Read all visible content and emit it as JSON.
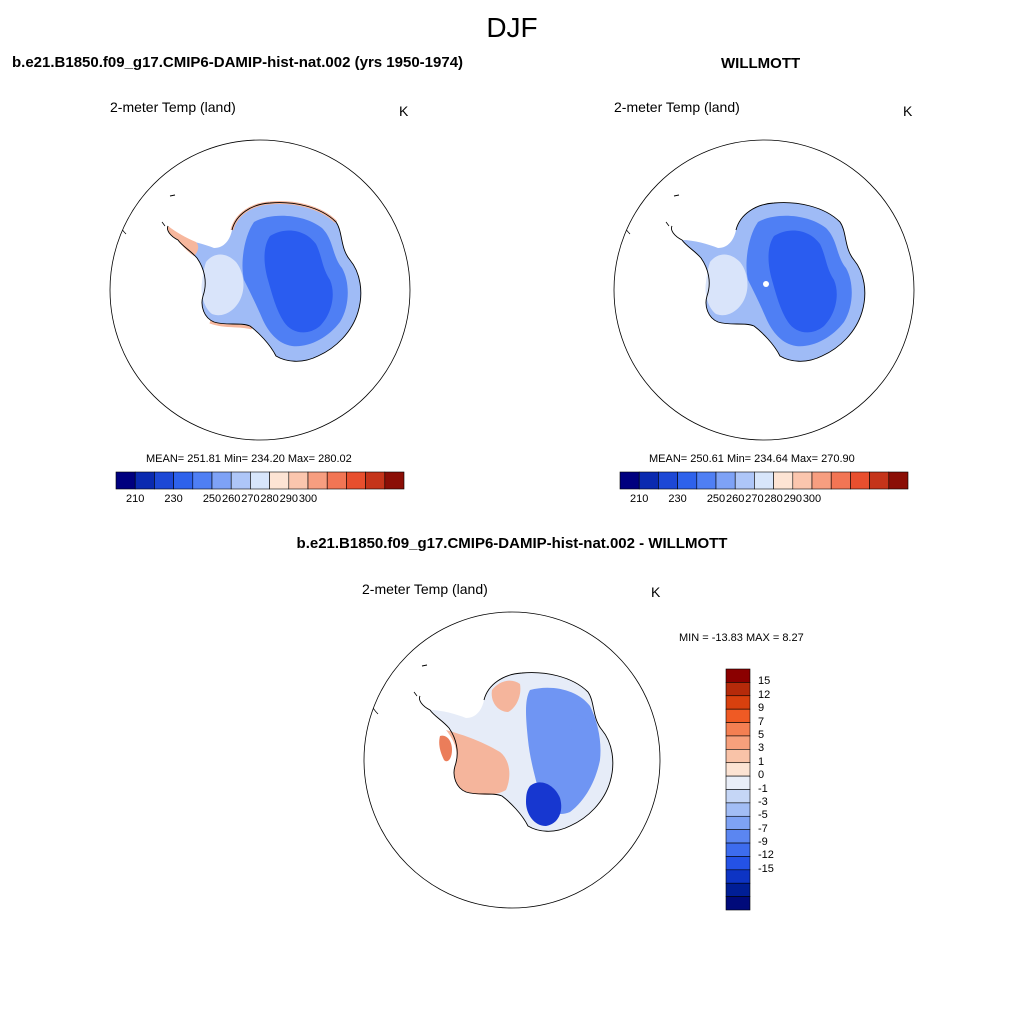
{
  "season": "DJF",
  "panels": {
    "model": {
      "title": "b.e21.B1850.f09_g17.CMIP6-DAMIP-hist-nat.002 (yrs 1950-1974)",
      "variable": "2-meter Temp (land)",
      "units": "K",
      "stats": "MEAN= 251.81  Min= 234.20  Max= 280.02"
    },
    "obs": {
      "title": "WILLMOTT",
      "variable": "2-meter Temp (land)",
      "units": "K",
      "stats": "MEAN= 250.61  Min= 234.64  Max= 270.90"
    },
    "diff": {
      "title": "b.e21.B1850.f09_g17.CMIP6-DAMIP-hist-nat.002 - WILLMOTT",
      "variable": "2-meter Temp (land)",
      "units": "K",
      "stats": "MIN = -13.83 MAX =   8.27"
    }
  },
  "abs_colorbar": {
    "colors": [
      "#00007f",
      "#0a2ab0",
      "#1d48d6",
      "#2e62ec",
      "#4f7ff4",
      "#7ea2f6",
      "#aec6f8",
      "#d8e6fb",
      "#fde4d4",
      "#fbc6ae",
      "#f79e80",
      "#f27554",
      "#e84f2e",
      "#c5341a",
      "#8b0e06"
    ],
    "tick_labels": [
      "210",
      "230",
      "250",
      "260",
      "270",
      "280",
      "290",
      "300"
    ]
  },
  "diff_colorbar": {
    "colors": [
      "#8b0000",
      "#b52a0a",
      "#d8400e",
      "#ef5a24",
      "#f47f52",
      "#f7a07c",
      "#f9c3a8",
      "#fce3d3",
      "#e9eef8",
      "#c5d6f6",
      "#a2bdf5",
      "#7ea2f4",
      "#5b86f1",
      "#3d6cee",
      "#2452e6",
      "#0d34c4",
      "#001e96",
      "#000a7a"
    ],
    "tick_labels": [
      "15",
      "12",
      "9",
      "7",
      "5",
      "3",
      "1",
      "0",
      "-1",
      "-3",
      "-5",
      "-7",
      "-9",
      "-12",
      "-15"
    ]
  },
  "map_colors": {
    "land_deep": "#2a5cf0",
    "land_mid": "#4f7ff4",
    "land_light": "#9fbbf6",
    "land_pale": "#d9e4fa",
    "coast_warm": "#f7b79d",
    "diff_warm": "#f5b59c",
    "diff_warm_strong": "#eb7d5a",
    "diff_cool": "#6f95f3",
    "diff_cool_strong": "#1737d0",
    "diff_neutral": "#e6ecf8"
  }
}
